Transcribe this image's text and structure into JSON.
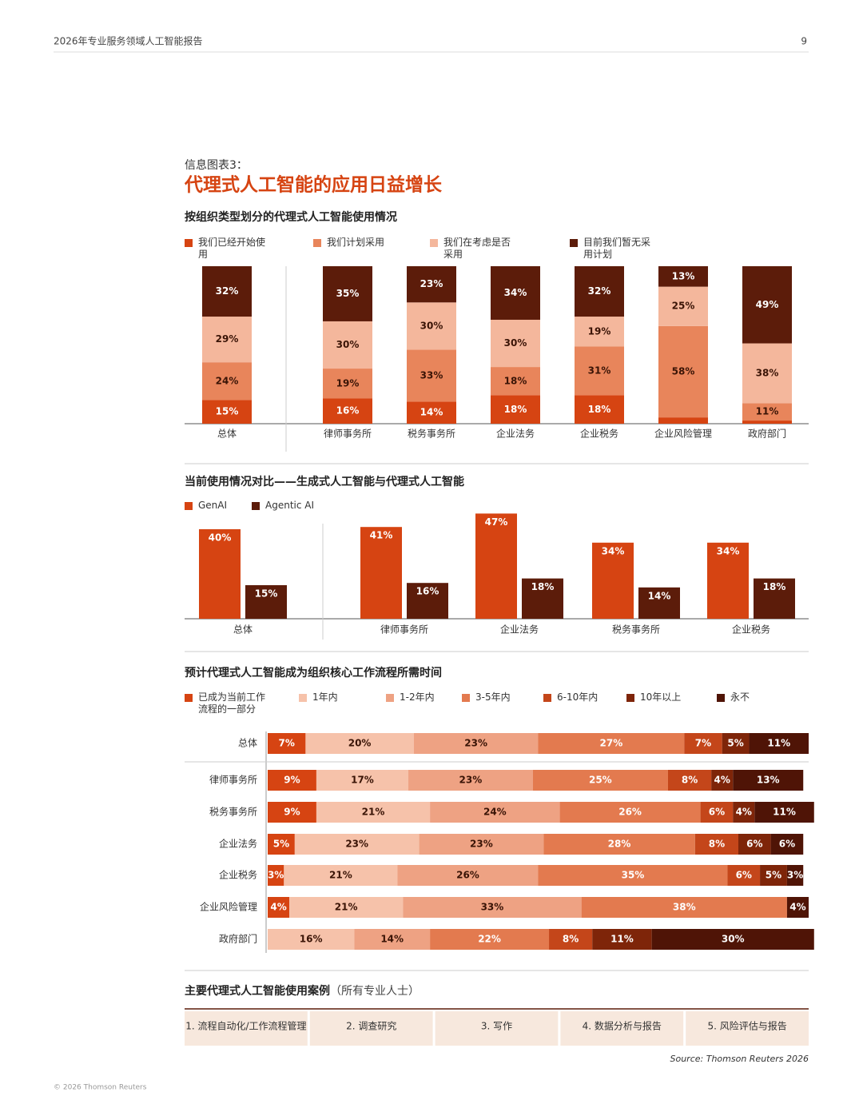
{
  "header": {
    "title": "2026年专业服务领域人工智能报告",
    "page": "9"
  },
  "infographic": {
    "label": "信息图表3：",
    "title": "代理式人工智能的应用日益增长"
  },
  "chart_data": [
    {
      "type": "stacked-bar",
      "title": "按组织类型划分的代理式人工智能使用情况",
      "categories": [
        "总体",
        "律师事务所",
        "税务事务所",
        "企业法务",
        "企业税务",
        "企业风险管理",
        "政府部门"
      ],
      "series": [
        {
          "name": "我们已经开始使用",
          "color": "#d64412",
          "values": [
            15,
            16,
            14,
            18,
            18,
            4,
            2
          ],
          "value_labels": [
            "15%",
            "16%",
            "14%",
            "18%",
            "18%",
            null,
            null
          ]
        },
        {
          "name": "我们计划采用",
          "color": "#e8855b",
          "values": [
            24,
            19,
            33,
            18,
            31,
            58,
            11
          ],
          "value_labels": [
            "24%",
            "19%",
            "33%",
            "18%",
            "31%",
            "58%",
            "11%"
          ]
        },
        {
          "name": "我们在考虑是否采用",
          "color": "#f4b79c",
          "values": [
            29,
            30,
            30,
            30,
            19,
            25,
            38
          ],
          "value_labels": [
            "29%",
            "30%",
            "30%",
            "30%",
            "19%",
            "25%",
            "38%"
          ]
        },
        {
          "name": "目前我们暂无采用计划",
          "color": "#5c1c0a",
          "values": [
            32,
            35,
            23,
            34,
            32,
            13,
            49
          ],
          "value_labels": [
            "32%",
            "35%",
            "23%",
            "34%",
            "32%",
            "13%",
            "49%"
          ]
        }
      ]
    },
    {
      "type": "grouped-bar",
      "title": "当前使用情况对比——生成式人工智能与代理式人工智能",
      "categories": [
        "总体",
        "律师事务所",
        "企业法务",
        "税务事务所",
        "企业税务"
      ],
      "series": [
        {
          "name": "GenAI",
          "color": "#d64412",
          "values": [
            40,
            41,
            47,
            34,
            34
          ],
          "value_labels": [
            "40%",
            "41%",
            "47%",
            "34%",
            "34%"
          ]
        },
        {
          "name": "Agentic AI",
          "color": "#5c1c0a",
          "values": [
            15,
            16,
            18,
            14,
            18
          ],
          "value_labels": [
            "15%",
            "16%",
            "18%",
            "14%",
            "18%"
          ]
        }
      ]
    },
    {
      "type": "stacked-barh",
      "title": "预计代理式人工智能成为组织核心工作流程所需时间",
      "categories": [
        "总体",
        "律师事务所",
        "税务事务所",
        "企业法务",
        "企业税务",
        "企业风险管理",
        "政府部门"
      ],
      "series": [
        {
          "name": "已成为当前工作流程的一部分",
          "color": "#d64412",
          "values": [
            7,
            9,
            9,
            5,
            3,
            4,
            null
          ],
          "value_labels": [
            "7%",
            "9%",
            "9%",
            "5%",
            "3%",
            "4%",
            null
          ]
        },
        {
          "name": "1年内",
          "color": "#f6c2aa",
          "values": [
            20,
            17,
            21,
            23,
            21,
            21,
            16
          ],
          "value_labels": [
            "20%",
            "17%",
            "21%",
            "23%",
            "21%",
            "21%",
            "16%"
          ]
        },
        {
          "name": "1-2年内",
          "color": "#eea283",
          "values": [
            23,
            23,
            24,
            23,
            26,
            33,
            14
          ],
          "value_labels": [
            "23%",
            "23%",
            "24%",
            "23%",
            "26%",
            "33%",
            "14%"
          ]
        },
        {
          "name": "3-5年内",
          "color": "#e37a4f",
          "values": [
            27,
            25,
            26,
            28,
            35,
            38,
            22
          ],
          "value_labels": [
            "27%",
            "25%",
            "26%",
            "28%",
            "35%",
            "38%",
            "22%"
          ]
        },
        {
          "name": "6-10年内",
          "color": "#c4461a",
          "values": [
            7,
            8,
            6,
            8,
            6,
            null,
            8
          ],
          "value_labels": [
            "7%",
            "8%",
            "6%",
            "8%",
            "6%",
            null,
            "8%"
          ]
        },
        {
          "name": "10年以上",
          "color": "#7e2509",
          "values": [
            5,
            4,
            4,
            6,
            5,
            null,
            11
          ],
          "value_labels": [
            "5%",
            "4%",
            "4%",
            "6%",
            "5%",
            null,
            "11%"
          ]
        },
        {
          "name": "永不",
          "color": "#4f1406",
          "values": [
            11,
            13,
            11,
            6,
            3,
            4,
            30
          ],
          "value_labels": [
            "11%",
            "13%",
            "11%",
            "6%",
            "3%",
            "4%",
            "30%"
          ]
        }
      ]
    }
  ],
  "use_cases": {
    "title": "主要代理式人工智能使用案例",
    "note": "（所有专业人士）",
    "items": [
      "1. 流程自动化/工作流程管理",
      "2. 调查研究",
      "3. 写作",
      "4. 数据分析与报告",
      "5. 风险评估与报告"
    ]
  },
  "source": "Source: Thomson Reuters 2026",
  "footer": "© 2026 Thomson Reuters"
}
